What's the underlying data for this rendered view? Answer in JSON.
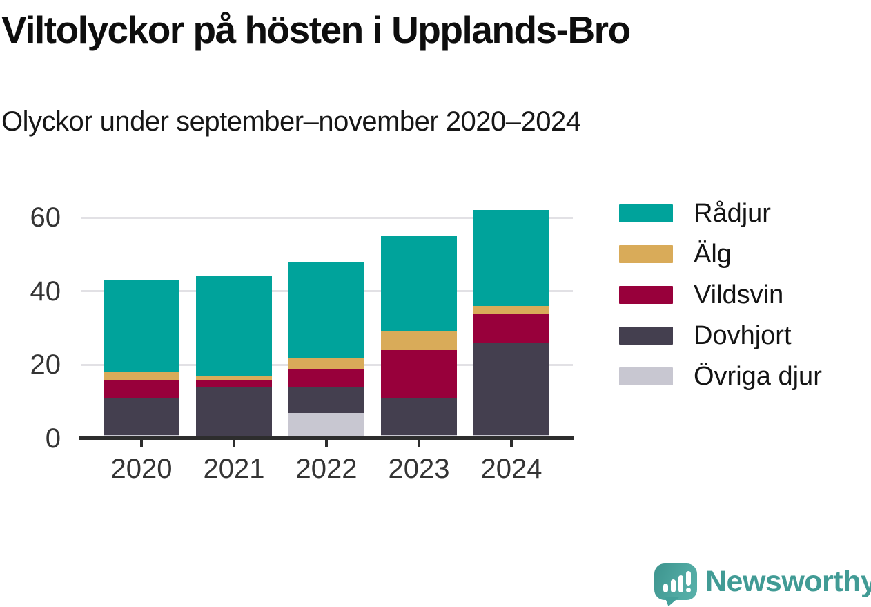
{
  "header": {
    "title": "Viltolyckor på hösten i Upplands-Bro",
    "subtitle": "Olyckor under september–november 2020–2024"
  },
  "chart_data": {
    "type": "bar",
    "stacked": true,
    "title": "Viltolyckor på hösten i Upplands-Bro",
    "subtitle": "Olyckor under september–november 2020–2024",
    "categories": [
      "2020",
      "2021",
      "2022",
      "2023",
      "2024"
    ],
    "series": [
      {
        "name": "Rådjur",
        "color": "#00a39b",
        "values": [
          25,
          27,
          26,
          26,
          26
        ]
      },
      {
        "name": "Älg",
        "color": "#d9ab59",
        "values": [
          2,
          1,
          3,
          5,
          2
        ]
      },
      {
        "name": "Vildsvin",
        "color": "#98003b",
        "values": [
          5,
          2,
          5,
          13,
          8
        ]
      },
      {
        "name": "Dovhjort",
        "color": "#443f4f",
        "values": [
          10,
          14,
          7,
          10,
          25
        ]
      },
      {
        "name": "Övriga djur",
        "color": "#c8c7d1",
        "values": [
          1,
          0,
          7,
          1,
          1
        ]
      }
    ],
    "stack_order_bottom_to_top": [
      "Övriga djur",
      "Dovhjort",
      "Vildsvin",
      "Älg",
      "Rådjur"
    ],
    "stack_totals": [
      43,
      44,
      48,
      55,
      62
    ],
    "xlabel": "",
    "ylabel": "",
    "ylim": [
      0,
      62
    ],
    "yticks": [
      0,
      20,
      40,
      60
    ],
    "grid": "horizontal",
    "legend_position": "right",
    "colors": {
      "gridline": "#e2e1e5",
      "axis": "#2d2d2d",
      "tick_text": "#343434"
    }
  },
  "logo": {
    "text": "Newsworthy",
    "color": "#419b95",
    "icon": "bar-chart-speech-bubble"
  }
}
